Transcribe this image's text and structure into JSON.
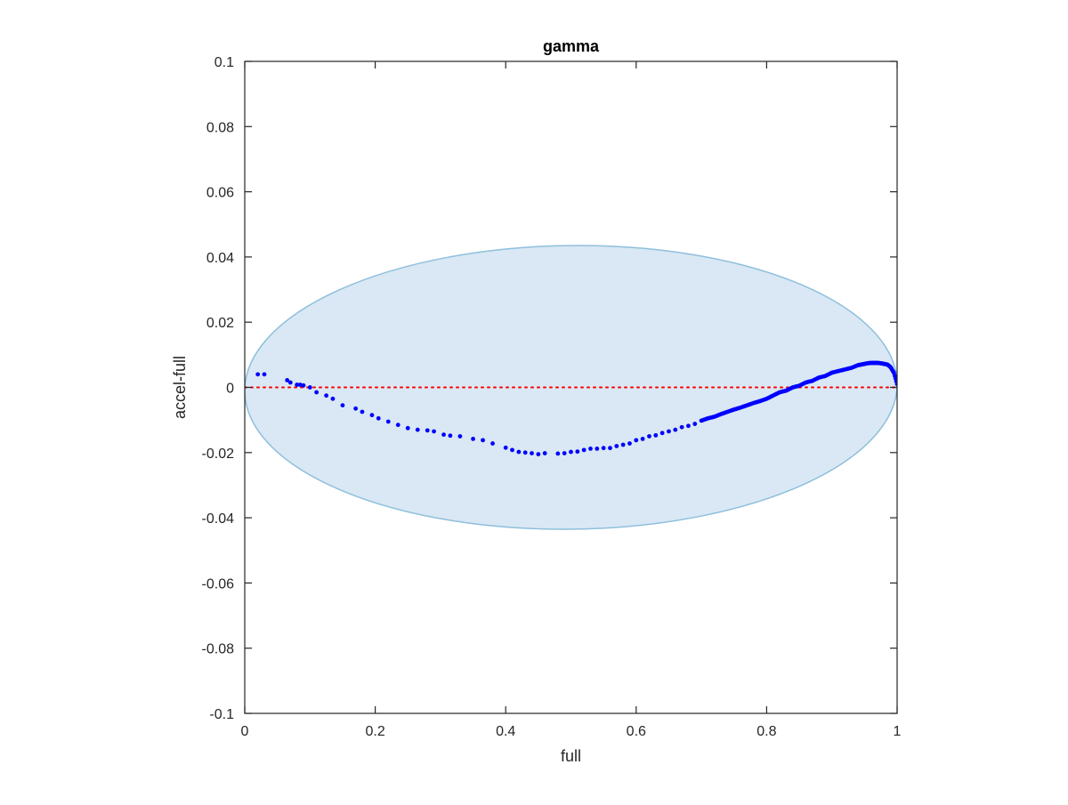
{
  "figure": {
    "background": "#ffffff"
  },
  "chart_data": {
    "type": "scatter",
    "title": "gamma",
    "xlabel": "full",
    "ylabel": "accel-full",
    "xlim": [
      0,
      1
    ],
    "ylim": [
      -0.1,
      0.1
    ],
    "xticks": [
      0,
      0.2,
      0.4,
      0.6,
      0.8,
      1
    ],
    "xtick_labels": [
      "0",
      "0.2",
      "0.4",
      "0.6",
      "0.8",
      "1"
    ],
    "yticks": [
      -0.1,
      -0.08,
      -0.06,
      -0.04,
      -0.02,
      0,
      0.02,
      0.04,
      0.06,
      0.08,
      0.1
    ],
    "ytick_labels": [
      "-0.1",
      "-0.08",
      "-0.06",
      "-0.04",
      "-0.02",
      "0",
      "0.02",
      "0.04",
      "0.06",
      "0.08",
      "0.1"
    ],
    "grid": false,
    "legend": "none",
    "box": true,
    "colors": {
      "points": "#0000ff",
      "ellipse_fill": "#d9e8f4",
      "ellipse_edge": "#8fbfdc",
      "zero_line": "#ff0000",
      "axes": "#262626"
    },
    "reference_line": {
      "y": 0,
      "style": "dotted"
    },
    "ellipse": {
      "center": [
        0.5,
        0.0
      ],
      "semi_axis_x": 0.5,
      "semi_axis_y": 0.0435,
      "tilt_deg": -0.7
    },
    "series": [
      {
        "x": [
          0.02,
          0.03,
          0.065,
          0.07,
          0.08,
          0.085,
          0.09,
          0.1,
          0.11,
          0.125,
          0.135,
          0.15,
          0.17,
          0.18,
          0.195,
          0.205,
          0.22,
          0.235,
          0.25,
          0.265,
          0.28,
          0.29,
          0.305,
          0.315,
          0.33,
          0.35,
          0.365,
          0.38,
          0.4,
          0.41,
          0.42,
          0.43,
          0.44,
          0.45,
          0.46,
          0.48,
          0.49,
          0.5,
          0.51,
          0.52,
          0.53,
          0.54,
          0.55,
          0.56,
          0.57,
          0.58,
          0.59,
          0.6,
          0.61,
          0.62,
          0.63,
          0.64,
          0.65,
          0.66,
          0.67,
          0.68,
          0.69,
          0.7,
          0.71,
          0.72,
          0.73,
          0.74,
          0.75,
          0.76,
          0.77,
          0.78,
          0.79,
          0.8,
          0.81,
          0.82,
          0.83,
          0.84,
          0.85,
          0.86,
          0.87,
          0.88,
          0.89,
          0.9,
          0.91,
          0.92,
          0.93,
          0.94,
          0.945,
          0.95,
          0.955,
          0.96,
          0.965,
          0.97,
          0.975,
          0.98,
          0.985,
          0.99,
          0.995,
          1.0
        ],
        "y": [
          0.004,
          0.004,
          0.0022,
          0.0015,
          0.0008,
          0.0008,
          0.0006,
          0.0,
          -0.0015,
          -0.0025,
          -0.0035,
          -0.0055,
          -0.0065,
          -0.0075,
          -0.0085,
          -0.0095,
          -0.0105,
          -0.0115,
          -0.0125,
          -0.013,
          -0.0132,
          -0.0135,
          -0.0145,
          -0.0148,
          -0.015,
          -0.0158,
          -0.0162,
          -0.0172,
          -0.0185,
          -0.0192,
          -0.0198,
          -0.02,
          -0.0202,
          -0.0205,
          -0.0202,
          -0.0203,
          -0.0202,
          -0.0198,
          -0.0197,
          -0.0192,
          -0.0188,
          -0.0188,
          -0.0186,
          -0.0186,
          -0.018,
          -0.0176,
          -0.0172,
          -0.0162,
          -0.0158,
          -0.015,
          -0.0147,
          -0.014,
          -0.0135,
          -0.013,
          -0.0122,
          -0.0118,
          -0.0112,
          -0.0102,
          -0.0095,
          -0.009,
          -0.0082,
          -0.0075,
          -0.0068,
          -0.0062,
          -0.0055,
          -0.0048,
          -0.0042,
          -0.0035,
          -0.0025,
          -0.0015,
          -0.001,
          0.0,
          0.0005,
          0.0015,
          0.002,
          0.003,
          0.0035,
          0.0045,
          0.005,
          0.0055,
          0.006,
          0.0068,
          0.007,
          0.0072,
          0.0074,
          0.0075,
          0.0075,
          0.0075,
          0.0074,
          0.0072,
          0.007,
          0.0062,
          0.0045,
          0.001
        ]
      }
    ]
  }
}
